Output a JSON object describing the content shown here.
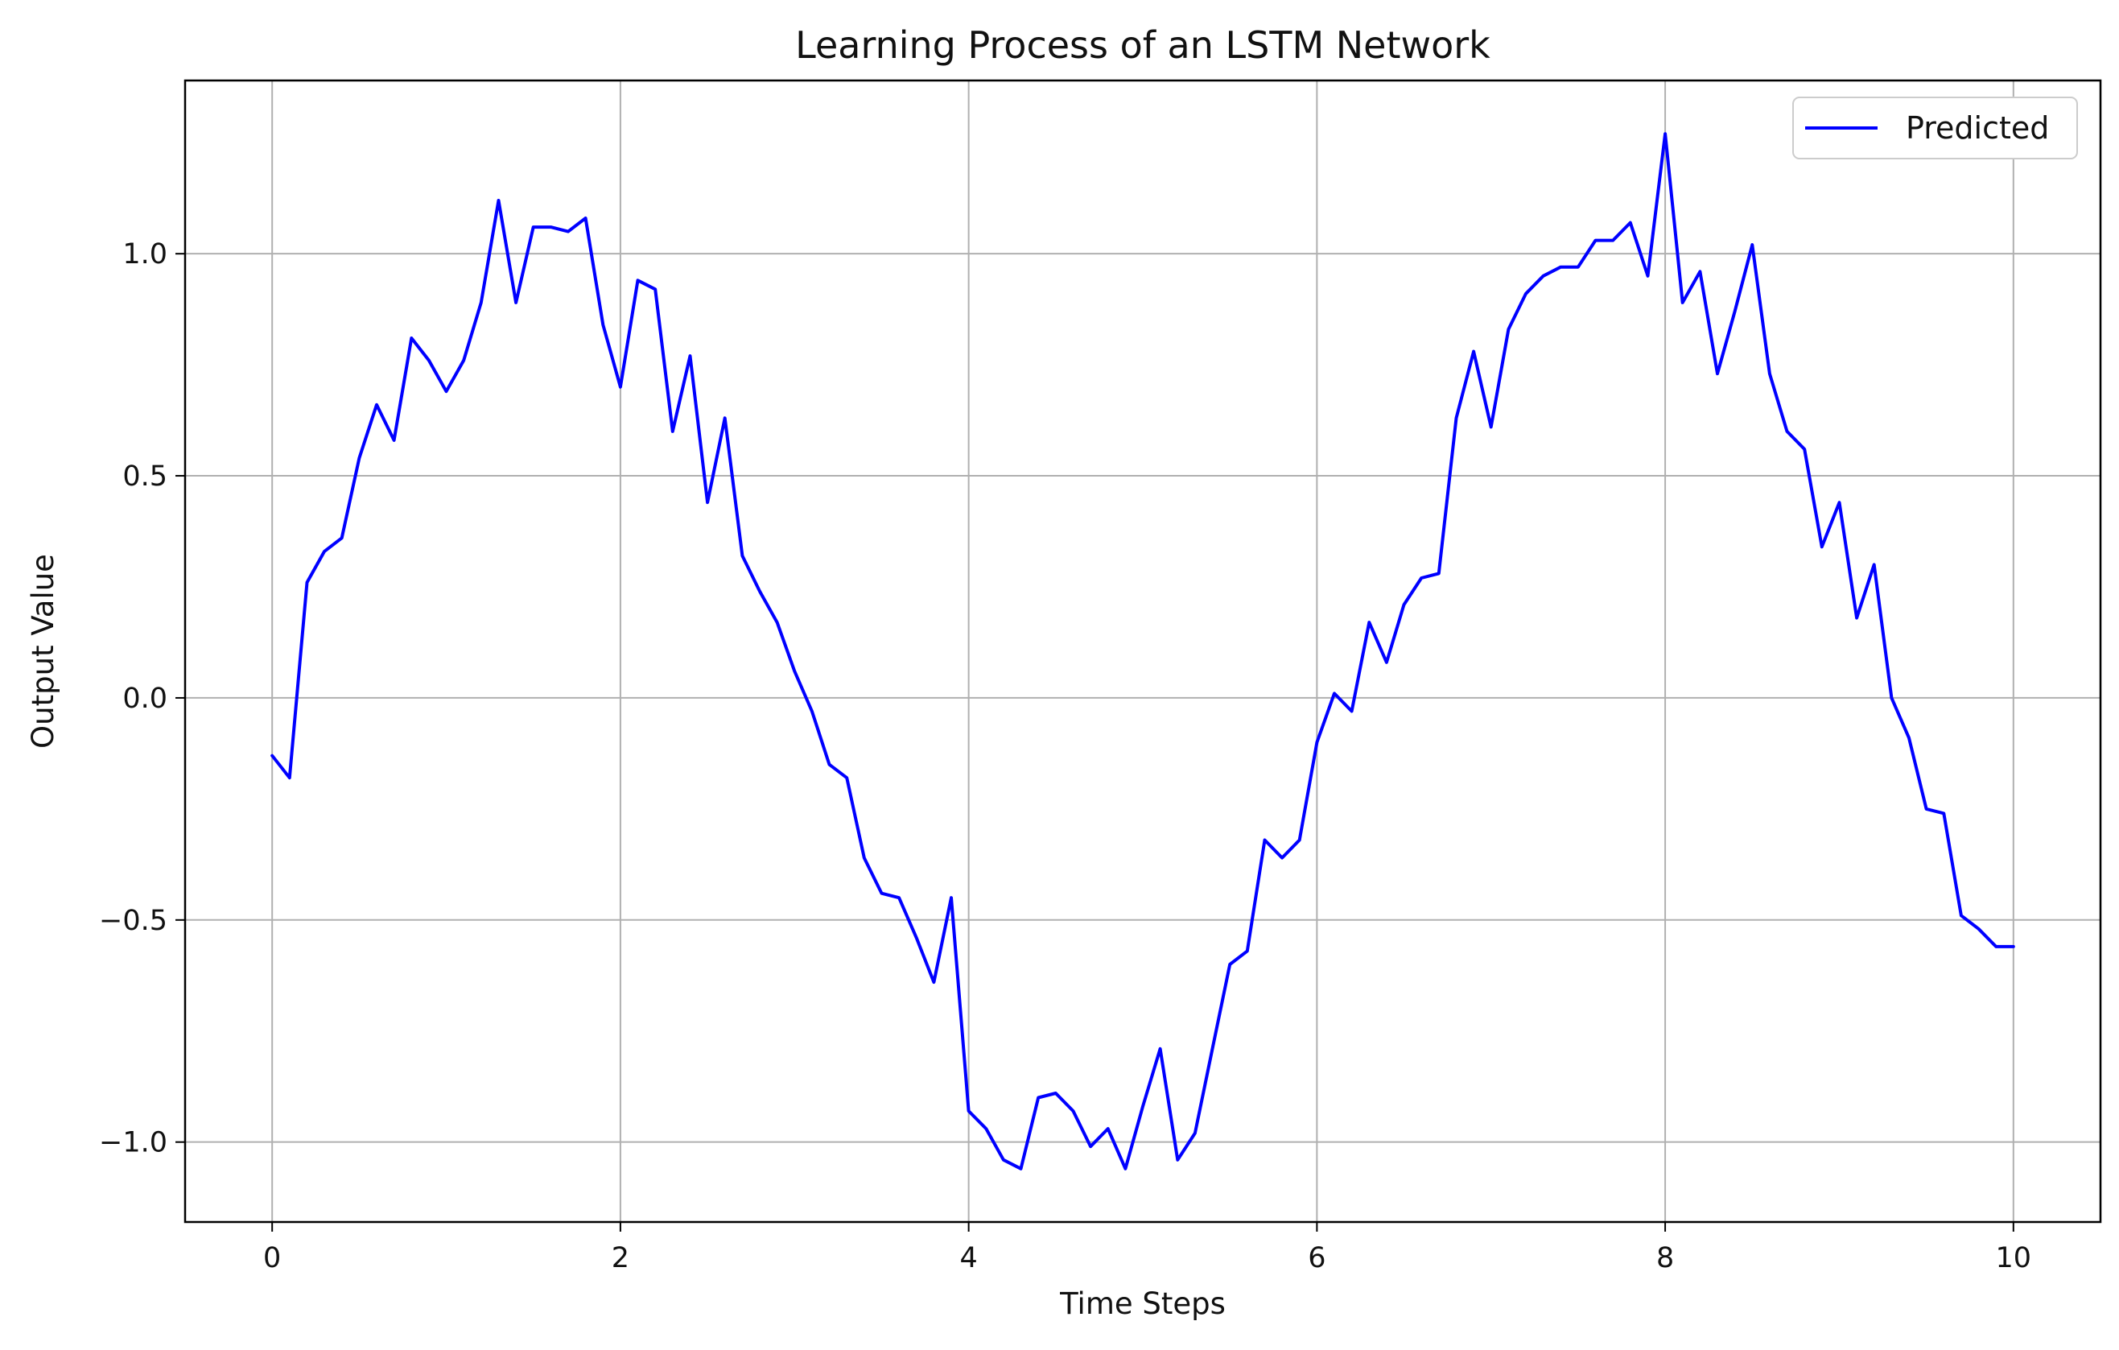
{
  "chart_data": {
    "type": "line",
    "title": "Learning Process of an LSTM Network",
    "xlabel": "Time Steps",
    "ylabel": "Output Value",
    "xlim": [
      -0.5,
      10.5
    ],
    "ylim": [
      -1.18,
      1.39
    ],
    "xticks": [
      0,
      2,
      4,
      6,
      8,
      10
    ],
    "xtick_labels": [
      "0",
      "2",
      "4",
      "6",
      "8",
      "10"
    ],
    "yticks": [
      -1.0,
      -0.5,
      0.0,
      0.5,
      1.0
    ],
    "ytick_labels": [
      "−1.0",
      "−0.5",
      "0.0",
      "0.5",
      "1.0"
    ],
    "grid": true,
    "legend_position": "top-right",
    "series": [
      {
        "name": "Predicted",
        "color": "#0000ff",
        "x": [
          0.0,
          0.1,
          0.2,
          0.3,
          0.4,
          0.5,
          0.6,
          0.7,
          0.8,
          0.9,
          1.0,
          1.1,
          1.2,
          1.3,
          1.4,
          1.5,
          1.6,
          1.7,
          1.8,
          1.9,
          2.0,
          2.1,
          2.2,
          2.3,
          2.4,
          2.5,
          2.6,
          2.7,
          2.8,
          2.9,
          3.0,
          3.1,
          3.2,
          3.3,
          3.4,
          3.5,
          3.6,
          3.7,
          3.8,
          3.9,
          4.0,
          4.1,
          4.2,
          4.3,
          4.4,
          4.5,
          4.6,
          4.7,
          4.8,
          4.9,
          5.0,
          5.1,
          5.2,
          5.3,
          5.4,
          5.5,
          5.6,
          5.7,
          5.8,
          5.9,
          6.0,
          6.1,
          6.2,
          6.3,
          6.4,
          6.5,
          6.6,
          6.7,
          6.8,
          6.9,
          7.0,
          7.1,
          7.2,
          7.3,
          7.4,
          7.5,
          7.6,
          7.7,
          7.8,
          7.9,
          8.0,
          8.1,
          8.2,
          8.3,
          8.4,
          8.5,
          8.6,
          8.7,
          8.8,
          8.9,
          9.0,
          9.1,
          9.2,
          9.3,
          9.4,
          9.5,
          9.6,
          9.7,
          9.8,
          9.9,
          10.0
        ],
        "y": [
          -0.13,
          -0.18,
          0.26,
          0.33,
          0.36,
          0.54,
          0.66,
          0.58,
          0.81,
          0.76,
          0.69,
          0.76,
          0.89,
          1.12,
          0.89,
          1.06,
          1.06,
          1.05,
          1.08,
          0.84,
          0.7,
          0.94,
          0.92,
          0.6,
          0.77,
          0.44,
          0.63,
          0.32,
          0.24,
          0.17,
          0.06,
          -0.03,
          -0.15,
          -0.18,
          -0.36,
          -0.44,
          -0.45,
          -0.54,
          -0.64,
          -0.45,
          -0.93,
          -0.97,
          -1.04,
          -1.06,
          -0.9,
          -0.89,
          -0.93,
          -1.01,
          -0.97,
          -1.06,
          -0.92,
          -0.79,
          -1.04,
          -0.98,
          -0.79,
          -0.6,
          -0.57,
          -0.32,
          -0.36,
          -0.32,
          -0.1,
          0.01,
          -0.03,
          0.17,
          0.08,
          0.21,
          0.27,
          0.28,
          0.63,
          0.78,
          0.61,
          0.83,
          0.91,
          0.95,
          0.97,
          0.97,
          1.03,
          1.03,
          1.07,
          0.95,
          1.27,
          0.89,
          0.96,
          0.73,
          0.87,
          1.02,
          0.73,
          0.6,
          0.56,
          0.34,
          0.44,
          0.18,
          0.3,
          0.0,
          -0.09,
          -0.25,
          -0.26,
          -0.49,
          -0.52,
          -0.56,
          -0.56
        ]
      }
    ]
  }
}
